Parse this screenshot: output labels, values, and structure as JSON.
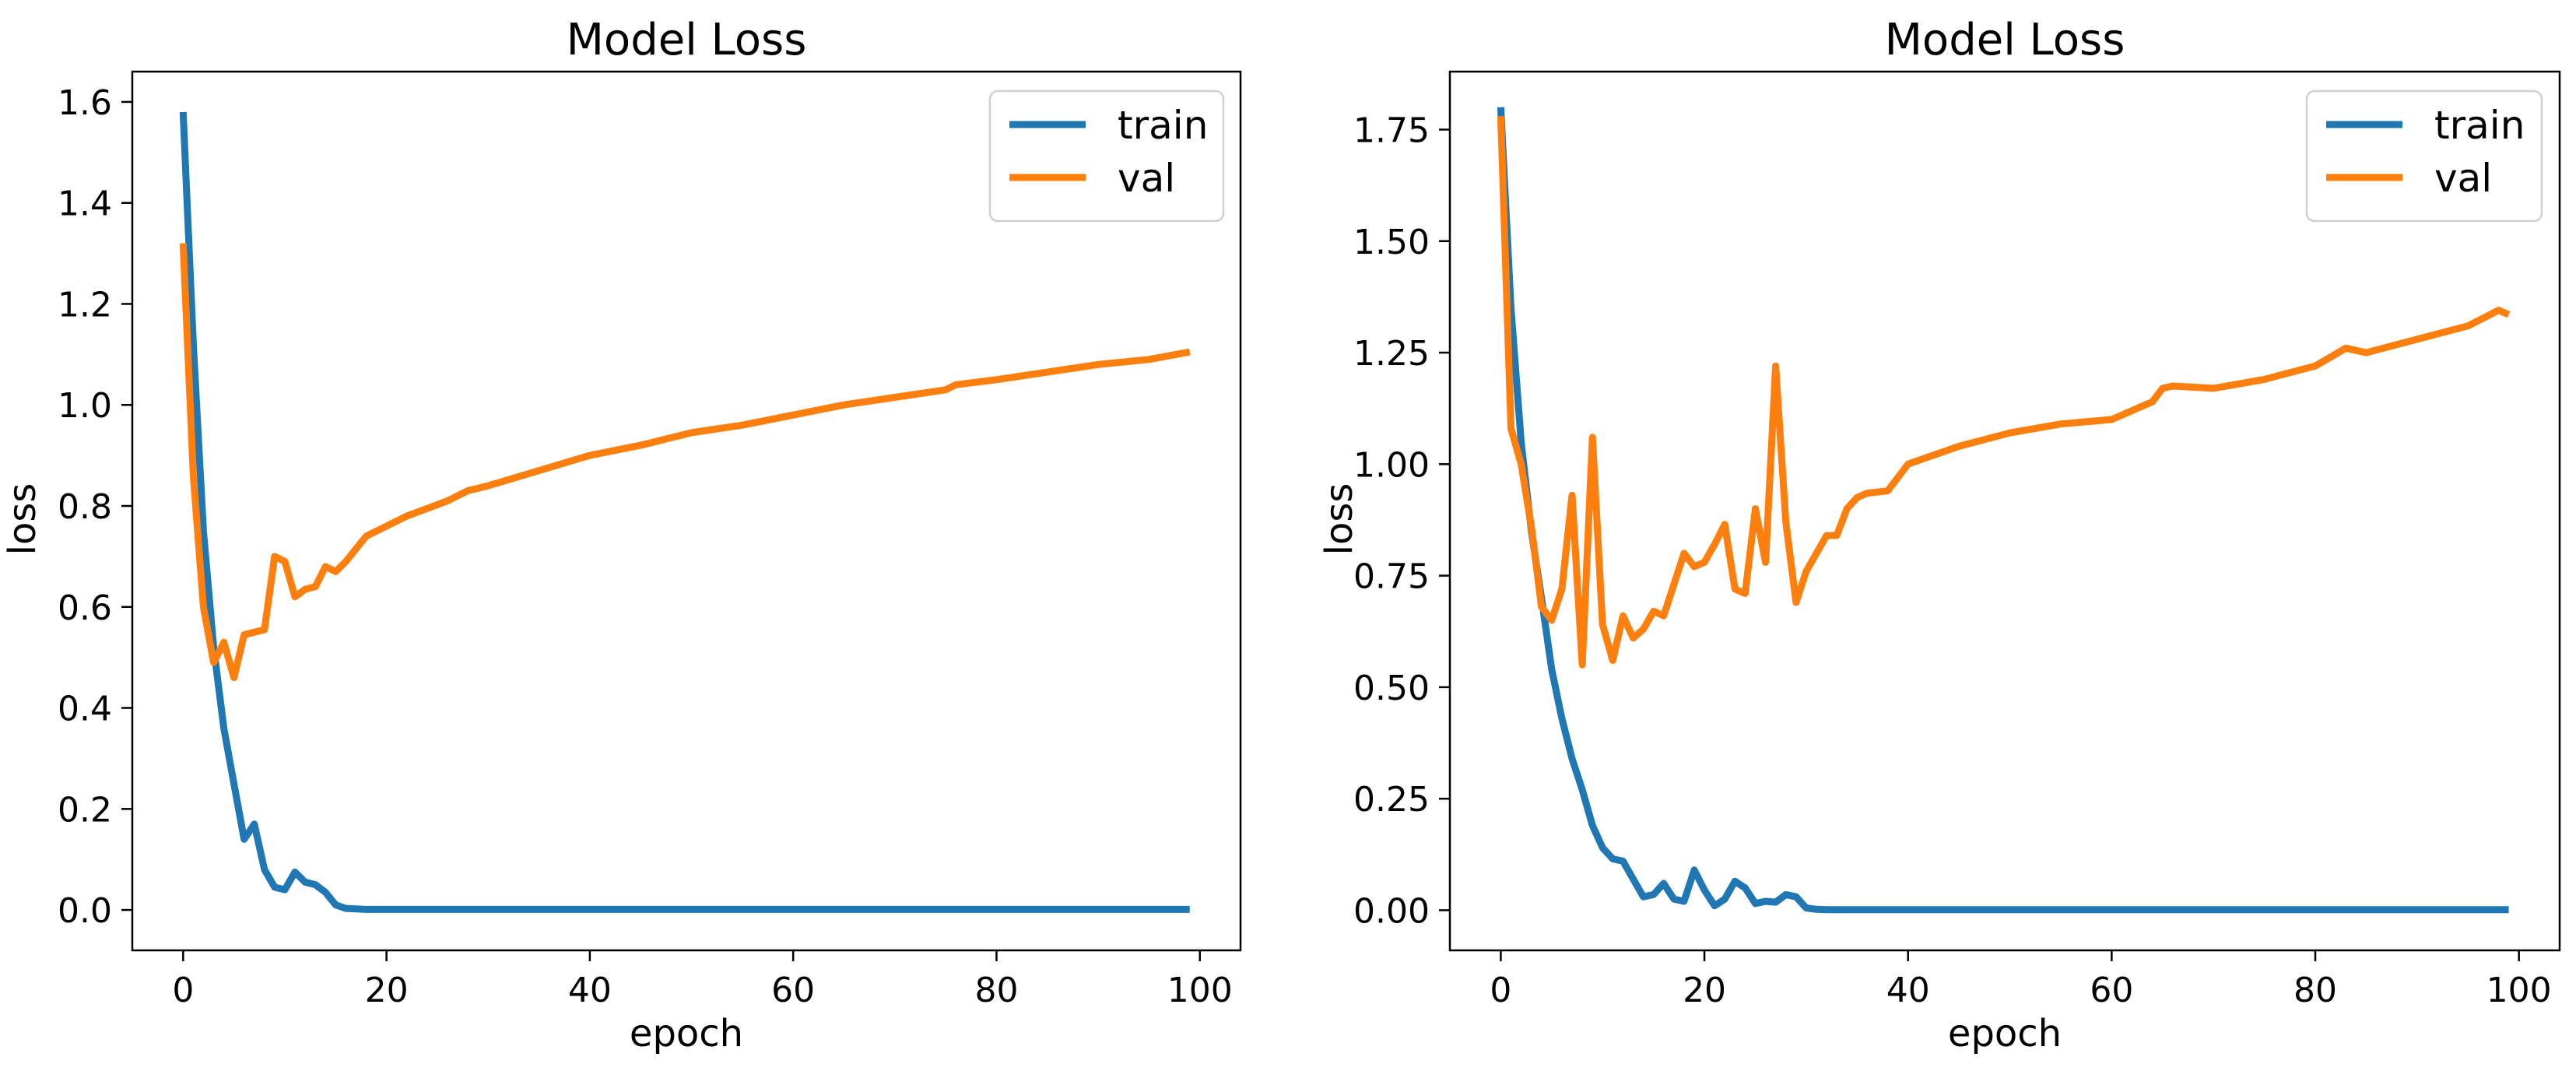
{
  "chart_data": [
    {
      "type": "line",
      "title": "Model Loss",
      "xlabel": "epoch",
      "ylabel": "loss",
      "xlim": [
        -5,
        104
      ],
      "ylim": [
        -0.08,
        1.66
      ],
      "xticks": [
        0,
        20,
        40,
        60,
        80,
        100
      ],
      "xtick_labels": [
        "0",
        "20",
        "40",
        "60",
        "80",
        "100"
      ],
      "yticks": [
        0.0,
        0.2,
        0.4,
        0.6,
        0.8,
        1.0,
        1.2,
        1.4,
        1.6
      ],
      "ytick_labels": [
        "0.0",
        "0.2",
        "0.4",
        "0.6",
        "0.8",
        "1.0",
        "1.2",
        "1.4",
        "1.6"
      ],
      "legend_position": "top-right",
      "series": [
        {
          "name": "train",
          "color": "#1f77b4",
          "x": [
            0,
            1,
            2,
            3,
            4,
            5,
            6,
            7,
            8,
            9,
            10,
            11,
            12,
            13,
            14,
            15,
            16,
            17,
            18,
            19,
            20,
            25,
            30,
            40,
            50,
            60,
            70,
            80,
            90,
            99
          ],
          "y": [
            1.58,
            1.12,
            0.75,
            0.52,
            0.36,
            0.25,
            0.14,
            0.17,
            0.08,
            0.045,
            0.04,
            0.075,
            0.055,
            0.05,
            0.035,
            0.01,
            0.003,
            0.002,
            0.001,
            0.001,
            0.001,
            0.001,
            0.001,
            0.001,
            0.001,
            0.001,
            0.001,
            0.001,
            0.001,
            0.001
          ]
        },
        {
          "name": "val",
          "color": "#ff7f0e",
          "x": [
            0,
            1,
            2,
            3,
            4,
            5,
            6,
            7,
            8,
            9,
            10,
            11,
            12,
            13,
            14,
            15,
            16,
            18,
            20,
            22,
            24,
            26,
            28,
            30,
            35,
            40,
            45,
            50,
            55,
            60,
            65,
            70,
            75,
            76,
            80,
            85,
            90,
            95,
            99
          ],
          "y": [
            1.32,
            0.86,
            0.6,
            0.49,
            0.53,
            0.46,
            0.545,
            0.55,
            0.555,
            0.7,
            0.69,
            0.62,
            0.635,
            0.64,
            0.68,
            0.67,
            0.69,
            0.74,
            0.76,
            0.78,
            0.795,
            0.81,
            0.83,
            0.84,
            0.87,
            0.9,
            0.92,
            0.945,
            0.96,
            0.98,
            1.0,
            1.015,
            1.03,
            1.04,
            1.05,
            1.065,
            1.08,
            1.09,
            1.105
          ]
        }
      ]
    },
    {
      "type": "line",
      "title": "Model Loss",
      "xlabel": "epoch",
      "ylabel": "loss",
      "xlim": [
        -5,
        104
      ],
      "ylim": [
        -0.09,
        1.88
      ],
      "xticks": [
        0,
        20,
        40,
        60,
        80,
        100
      ],
      "xtick_labels": [
        "0",
        "20",
        "40",
        "60",
        "80",
        "100"
      ],
      "yticks": [
        0.0,
        0.25,
        0.5,
        0.75,
        1.0,
        1.25,
        1.5,
        1.75
      ],
      "ytick_labels": [
        "0.00",
        "0.25",
        "0.50",
        "0.75",
        "1.00",
        "1.25",
        "1.50",
        "1.75"
      ],
      "legend_position": "top-right",
      "series": [
        {
          "name": "train",
          "color": "#1f77b4",
          "x": [
            0,
            1,
            2,
            3,
            4,
            5,
            6,
            7,
            8,
            9,
            10,
            11,
            12,
            13,
            14,
            15,
            16,
            17,
            18,
            19,
            20,
            21,
            22,
            23,
            24,
            25,
            26,
            27,
            28,
            29,
            30,
            31,
            32,
            35,
            40,
            50,
            60,
            70,
            80,
            90,
            99
          ],
          "y": [
            1.8,
            1.35,
            1.05,
            0.85,
            0.7,
            0.54,
            0.43,
            0.34,
            0.27,
            0.19,
            0.14,
            0.115,
            0.11,
            0.07,
            0.03,
            0.035,
            0.06,
            0.025,
            0.02,
            0.09,
            0.045,
            0.01,
            0.025,
            0.065,
            0.05,
            0.015,
            0.02,
            0.018,
            0.035,
            0.03,
            0.005,
            0.002,
            0.001,
            0.001,
            0.001,
            0.001,
            0.001,
            0.001,
            0.001,
            0.001,
            0.001
          ]
        },
        {
          "name": "val",
          "color": "#ff7f0e",
          "x": [
            0,
            1,
            2,
            3,
            4,
            5,
            6,
            7,
            8,
            9,
            10,
            11,
            12,
            13,
            14,
            15,
            16,
            17,
            18,
            19,
            20,
            21,
            22,
            23,
            24,
            25,
            26,
            27,
            28,
            29,
            30,
            32,
            33,
            34,
            35,
            36,
            38,
            40,
            45,
            50,
            55,
            60,
            64,
            65,
            66,
            70,
            75,
            80,
            83,
            85,
            90,
            95,
            98,
            99
          ],
          "y": [
            1.78,
            1.08,
            1.0,
            0.86,
            0.68,
            0.65,
            0.72,
            0.93,
            0.55,
            1.06,
            0.64,
            0.56,
            0.66,
            0.61,
            0.63,
            0.67,
            0.66,
            0.73,
            0.8,
            0.77,
            0.78,
            0.82,
            0.865,
            0.72,
            0.71,
            0.9,
            0.78,
            1.22,
            0.87,
            0.69,
            0.76,
            0.84,
            0.84,
            0.9,
            0.925,
            0.935,
            0.94,
            1.0,
            1.04,
            1.07,
            1.09,
            1.1,
            1.14,
            1.17,
            1.175,
            1.17,
            1.19,
            1.22,
            1.26,
            1.25,
            1.28,
            1.31,
            1.345,
            1.335
          ]
        }
      ]
    }
  ]
}
